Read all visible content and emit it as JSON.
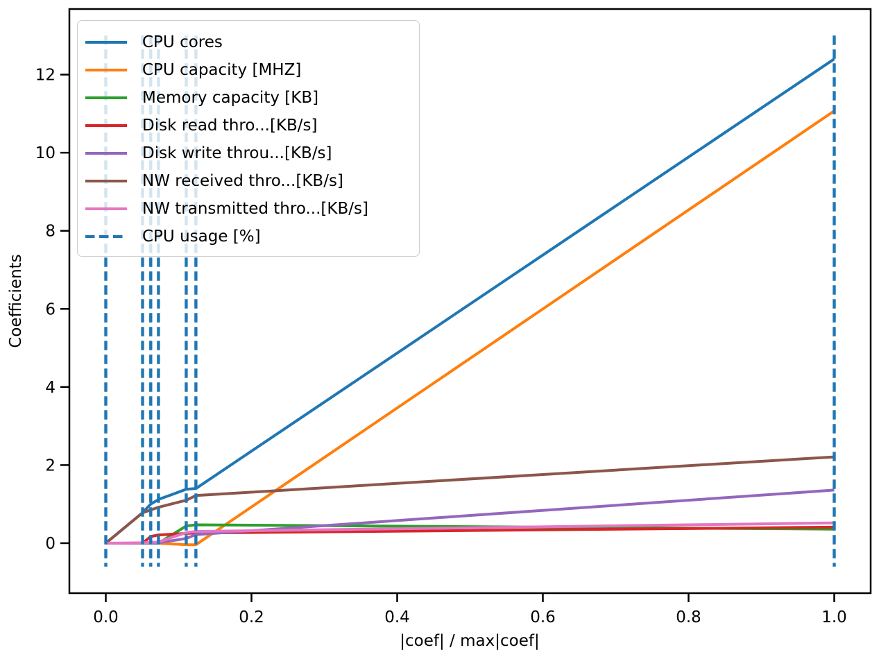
{
  "figure": {
    "background": "#ffffff",
    "text_color": "#000000",
    "spine_color": "#000000"
  },
  "chart_data": {
    "type": "line",
    "title": "",
    "xlabel": "|coef| / max|coef|",
    "ylabel": "Coefficients",
    "xlim": [
      -0.05,
      1.05
    ],
    "ylim": [
      -1.28,
      13.68
    ],
    "grid": false,
    "legend_position": "upper left",
    "xticks": [
      0.0,
      0.2,
      0.4,
      0.6,
      0.8,
      1.0
    ],
    "xtick_labels": [
      "0.0",
      "0.2",
      "0.4",
      "0.6",
      "0.8",
      "1.0"
    ],
    "yticks": [
      0,
      2,
      4,
      6,
      8,
      10,
      12
    ],
    "ytick_labels": [
      "0",
      "2",
      "4",
      "6",
      "8",
      "10",
      "12"
    ],
    "knots_x": [
      0.0,
      0.0505,
      0.0617,
      0.0723,
      0.1104,
      0.1237,
      1.0
    ],
    "series": [
      {
        "name": "CPU cores",
        "color": "#1f77b4",
        "style": "solid",
        "values": [
          0,
          0.78,
          1.0,
          1.12,
          1.38,
          1.4,
          12.4
        ]
      },
      {
        "name": "CPU capacity [MHZ]",
        "color": "#ff7f0e",
        "style": "solid",
        "values": [
          0,
          0,
          0,
          0,
          -0.04,
          -0.04,
          11.07
        ]
      },
      {
        "name": "Memory capacity [KB]",
        "color": "#2ca02c",
        "style": "solid",
        "values": [
          0,
          0,
          0,
          0,
          0.44,
          0.47,
          0.36
        ]
      },
      {
        "name": "Disk read thro...[KB/s]",
        "color": "#d62728",
        "style": "solid",
        "values": [
          0,
          0,
          0.17,
          0.21,
          0.25,
          0.26,
          0.41
        ]
      },
      {
        "name": "Disk write throu...[KB/s]",
        "color": "#9467bd",
        "style": "solid",
        "values": [
          0,
          0,
          0,
          0.01,
          0.12,
          0.22,
          1.36
        ]
      },
      {
        "name": "NW received thro...[KB/s]",
        "color": "#8c564b",
        "style": "solid",
        "values": [
          0,
          0.78,
          0.85,
          0.92,
          1.1,
          1.22,
          2.21
        ]
      },
      {
        "name": "NW transmitted thro...[KB/s]",
        "color": "#e377c2",
        "style": "solid",
        "values": [
          0,
          0.01,
          0.02,
          0.03,
          0.27,
          0.3,
          0.52
        ]
      }
    ],
    "vlines": {
      "name": "CPU usage [%]",
      "color": "#1f77b4",
      "style": "dashed",
      "x": [
        0.0,
        0.0505,
        0.0617,
        0.0723,
        0.1104,
        0.1237,
        1.0
      ],
      "ymin": -0.6,
      "ymax": 13.0
    },
    "legend_entries": [
      {
        "label": "CPU cores",
        "color": "#1f77b4",
        "dashed": false
      },
      {
        "label": "CPU capacity [MHZ]",
        "color": "#ff7f0e",
        "dashed": false
      },
      {
        "label": "Memory capacity [KB]",
        "color": "#2ca02c",
        "dashed": false
      },
      {
        "label": "Disk read thro...[KB/s]",
        "color": "#d62728",
        "dashed": false
      },
      {
        "label": "Disk write throu...[KB/s]",
        "color": "#9467bd",
        "dashed": false
      },
      {
        "label": "NW received thro...[KB/s]",
        "color": "#8c564b",
        "dashed": false
      },
      {
        "label": "NW transmitted thro...[KB/s]",
        "color": "#e377c2",
        "dashed": false
      },
      {
        "label": "CPU usage [%]",
        "color": "#1f77b4",
        "dashed": true
      }
    ]
  }
}
